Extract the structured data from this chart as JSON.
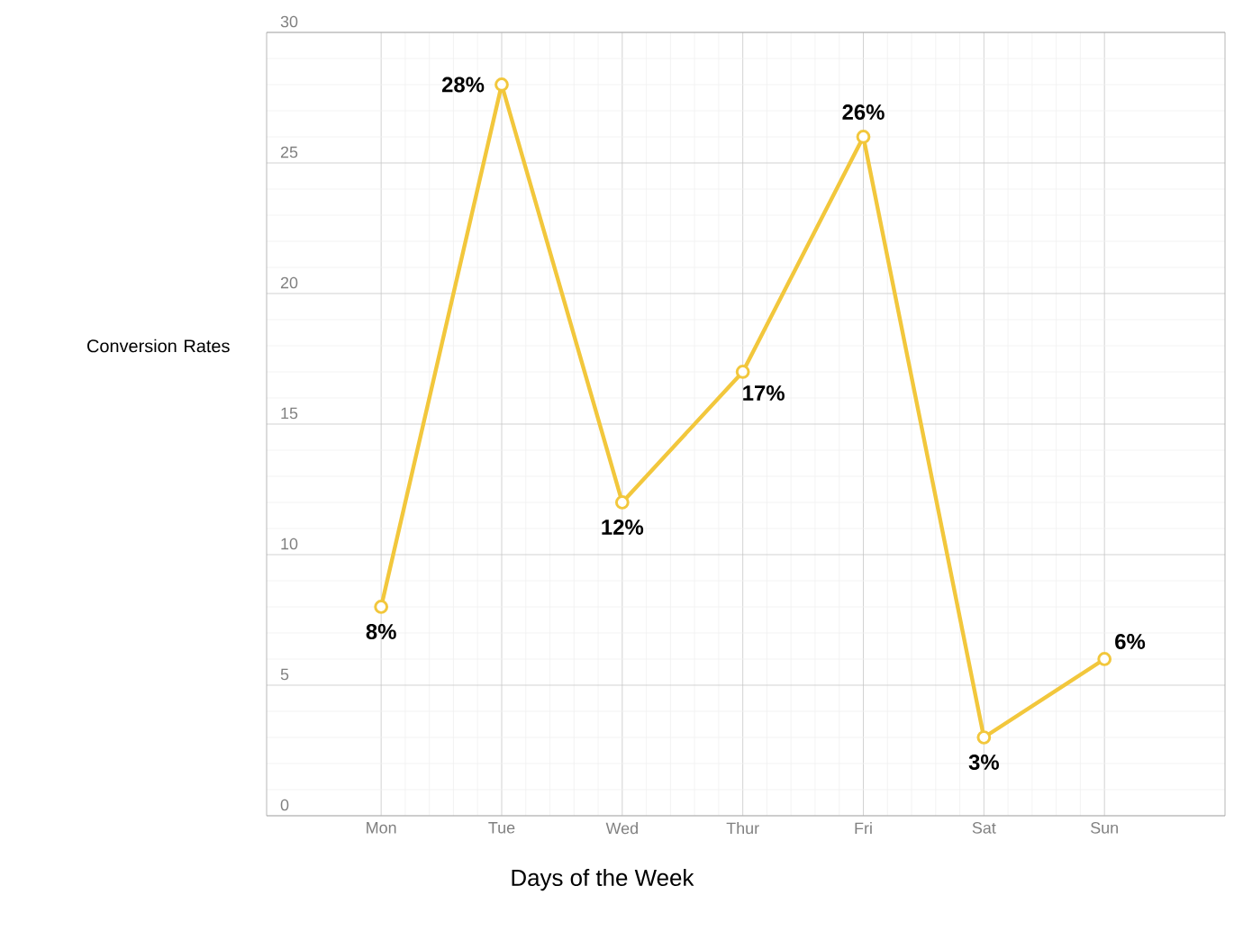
{
  "chart_data": {
    "type": "line",
    "xlabel": "Days of the Week",
    "ylabel": "Conversion Rates",
    "categories": [
      "Mon",
      "Tue",
      "Wed",
      "Thur",
      "Fri",
      "Sat",
      "Sun"
    ],
    "values": [
      8,
      28,
      12,
      17,
      26,
      3,
      6
    ],
    "value_labels": [
      "8%",
      "28%",
      "12%",
      "17%",
      "26%",
      "3%",
      "6%"
    ],
    "color": "#f2c73c",
    "marker": "circle",
    "line_style": "solid",
    "grid": true,
    "ylim": [
      0,
      30
    ],
    "yticks": [
      0,
      5,
      10,
      15,
      20,
      25,
      30
    ]
  }
}
